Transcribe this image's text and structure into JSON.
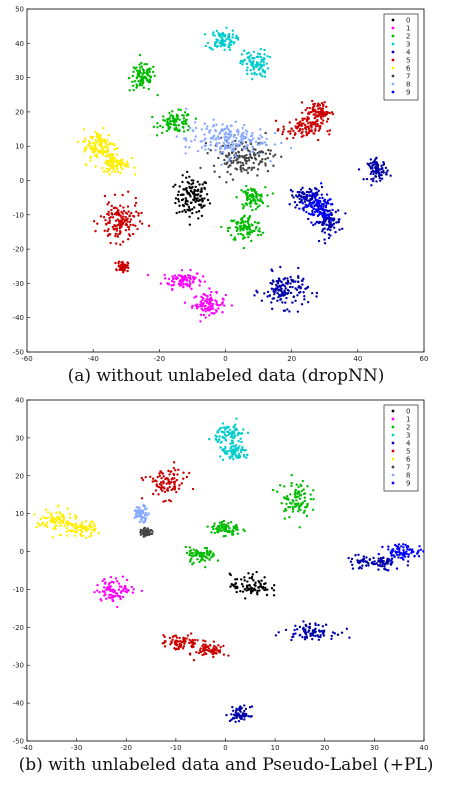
{
  "chart_data": [
    {
      "type": "scatter",
      "title": "",
      "xlabel": "",
      "ylabel": "",
      "xlim": [
        -60,
        60
      ],
      "ylim": [
        -50,
        50
      ],
      "xticks": [
        "-60",
        "-40",
        "-20",
        "0",
        "20",
        "40",
        "60"
      ],
      "yticks": [
        "-50",
        "-40",
        "-30",
        "-20",
        "-10",
        "0",
        "10",
        "20",
        "30",
        "40",
        "50"
      ],
      "legend_position": "top-right",
      "caption": "(a) without unlabeled data (dropNN)",
      "series": [
        {
          "name": "0",
          "color": "#000000",
          "clusters": [
            [
              -10,
              -5,
              5,
              6
            ]
          ]
        },
        {
          "name": "1",
          "color": "#ff00ff",
          "clusters": [
            [
              -13,
              -29,
              6,
              2.5
            ],
            [
              -5,
              -36,
              5,
              3
            ]
          ]
        },
        {
          "name": "2",
          "color": "#00bb00",
          "clusters": [
            [
              -25,
              30,
              4,
              4
            ],
            [
              -15,
              17,
              5,
              3
            ],
            [
              8,
              -5,
              4,
              3
            ],
            [
              6,
              -14,
              5,
              4
            ]
          ]
        },
        {
          "name": "3",
          "color": "#00cccc",
          "clusters": [
            [
              -1,
              41,
              4,
              3
            ],
            [
              9,
              34,
              4,
              4
            ]
          ]
        },
        {
          "name": "4",
          "color": "#0000aa",
          "clusters": [
            [
              25,
              -5,
              5,
              3
            ],
            [
              31,
              -12,
              4,
              4
            ],
            [
              46,
              3,
              3,
              3
            ],
            [
              18,
              -32,
              7,
              5
            ]
          ]
        },
        {
          "name": "5",
          "color": "#cc0000",
          "clusters": [
            [
              -32,
              -12,
              6,
              6
            ],
            [
              -31,
              -25,
              1.5,
              1.5
            ],
            [
              23,
              15,
              6,
              3
            ],
            [
              28,
              20,
              4,
              3
            ]
          ]
        },
        {
          "name": "6",
          "color": "#ffee00",
          "clusters": [
            [
              -38,
              10,
              5,
              5
            ],
            [
              -33,
              5,
              4,
              3
            ]
          ]
        },
        {
          "name": "7",
          "color": "#444444",
          "clusters": [
            [
              5,
              7,
              9,
              5
            ]
          ]
        },
        {
          "name": "8",
          "color": "#88aaff",
          "clusters": [
            [
              0,
              12,
              12,
              5
            ]
          ]
        },
        {
          "name": "9",
          "color": "#0000ff",
          "clusters": [
            [
              28,
              -8,
              5,
              4
            ]
          ]
        }
      ]
    },
    {
      "type": "scatter",
      "title": "",
      "xlabel": "",
      "ylabel": "",
      "xlim": [
        -40,
        40
      ],
      "ylim": [
        -50,
        40
      ],
      "xticks": [
        "-40",
        "-30",
        "-20",
        "-10",
        "0",
        "10",
        "20",
        "30",
        "40"
      ],
      "yticks": [
        "-50",
        "-40",
        "-30",
        "-20",
        "-10",
        "0",
        "10",
        "20",
        "30",
        "40"
      ],
      "legend_position": "top-right",
      "caption": "(b) with unlabeled data and Pseudo-Label (+PL)",
      "series": [
        {
          "name": "0",
          "color": "#000000",
          "clusters": [
            [
              5,
              -9,
              4,
              3
            ]
          ]
        },
        {
          "name": "1",
          "color": "#ff00ff",
          "clusters": [
            [
              -22,
              -10,
              4,
              3
            ]
          ]
        },
        {
          "name": "2",
          "color": "#00bb00",
          "clusters": [
            [
              14,
              14,
              3,
              5
            ],
            [
              0,
              6,
              3,
              2
            ],
            [
              -5,
              -1,
              3,
              2
            ]
          ]
        },
        {
          "name": "3",
          "color": "#00cccc",
          "clusters": [
            [
              1,
              31,
              3,
              3
            ],
            [
              2,
              26,
              3,
              2
            ]
          ]
        },
        {
          "name": "4",
          "color": "#0000aa",
          "clusters": [
            [
              30,
              -3,
              6,
              2
            ],
            [
              17,
              -21,
              5,
              2
            ],
            [
              3,
              -43,
              2,
              2
            ]
          ]
        },
        {
          "name": "5",
          "color": "#cc0000",
          "clusters": [
            [
              -12,
              18,
              4,
              4
            ],
            [
              -9,
              -24,
              4,
              2
            ],
            [
              -3,
              -26,
              3,
              2
            ]
          ]
        },
        {
          "name": "6",
          "color": "#ffee00",
          "clusters": [
            [
              -34,
              8,
              4,
              3
            ],
            [
              -29,
              6,
              3,
              2
            ]
          ]
        },
        {
          "name": "7",
          "color": "#444444",
          "clusters": [
            [
              -16,
              5,
              1,
              1
            ]
          ]
        },
        {
          "name": "8",
          "color": "#88aaff",
          "clusters": [
            [
              -17,
              10,
              1.5,
              2
            ]
          ]
        },
        {
          "name": "9",
          "color": "#0000ff",
          "clusters": [
            [
              36,
              0,
              4,
              2
            ]
          ]
        }
      ]
    }
  ]
}
